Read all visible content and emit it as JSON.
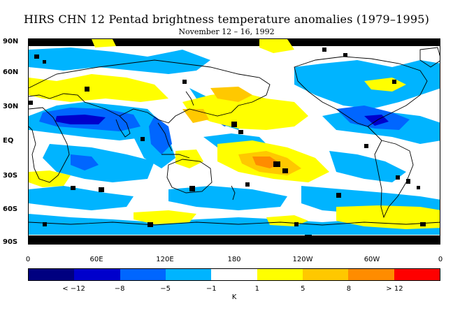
{
  "title": "HIRS CHN 12 Pentad brightness temperature anomalies (1979–1995)",
  "subtitle": "November 12 – 16, 1992",
  "lat_labels": [
    "90N",
    "60N",
    "30N",
    "EQ",
    "30S",
    "60S",
    "90S"
  ],
  "lon_labels": [
    "0",
    "60E",
    "120E",
    "180",
    "120W",
    "60W",
    "0"
  ],
  "colorbar": {
    "colors": [
      "#000080",
      "#0000cc",
      "#0066ff",
      "#00b4ff",
      "#ffffff",
      "#ffff00",
      "#ffc800",
      "#ff8c00",
      "#ff0000"
    ],
    "labels": [
      "< −12",
      "−8",
      "−5",
      "−1",
      "1",
      "5",
      "8",
      "> 12"
    ],
    "unit": "K"
  },
  "map_colors": {
    "missing": "#000000",
    "coast": "#000000"
  }
}
